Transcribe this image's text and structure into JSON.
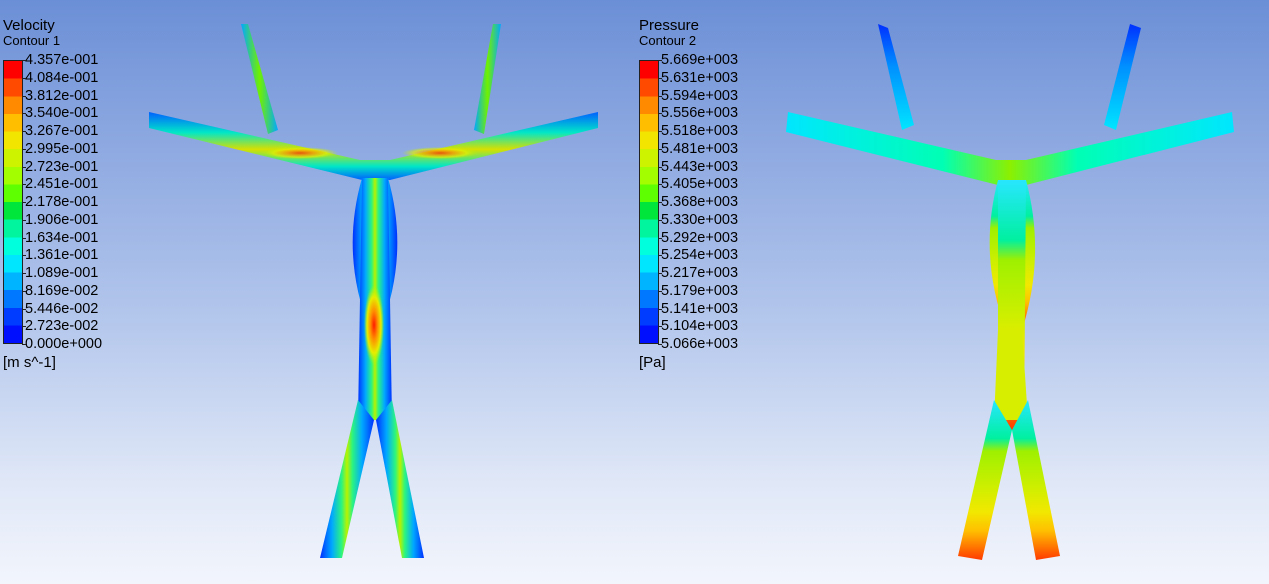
{
  "panels": [
    {
      "title": "Velocity",
      "subtitle": "Contour 1",
      "unit": "[m s^-1]",
      "ticks": [
        "4.357e-001",
        "4.084e-001",
        "3.812e-001",
        "3.540e-001",
        "3.267e-001",
        "2.995e-001",
        "2.723e-001",
        "2.451e-001",
        "2.178e-001",
        "1.906e-001",
        "1.634e-001",
        "1.361e-001",
        "1.089e-001",
        "8.169e-002",
        "5.446e-002",
        "2.723e-002",
        "0.000e+000"
      ]
    },
    {
      "title": "Pressure",
      "subtitle": "Contour 2",
      "unit": "[Pa]",
      "ticks": [
        "5.669e+003",
        "5.631e+003",
        "5.594e+003",
        "5.556e+003",
        "5.518e+003",
        "5.481e+003",
        "5.443e+003",
        "5.405e+003",
        "5.368e+003",
        "5.330e+003",
        "5.292e+003",
        "5.254e+003",
        "5.217e+003",
        "5.179e+003",
        "5.141e+003",
        "5.104e+003",
        "5.066e+003"
      ]
    }
  ],
  "colormap": [
    "#ff0000",
    "#ff4a00",
    "#ff8a00",
    "#ffbe00",
    "#f2e600",
    "#cdf300",
    "#a3ff00",
    "#5eff00",
    "#00e63a",
    "#00f59e",
    "#00ffdc",
    "#00e6ff",
    "#00b4ff",
    "#0078ff",
    "#003cff",
    "#0010ff"
  ]
}
